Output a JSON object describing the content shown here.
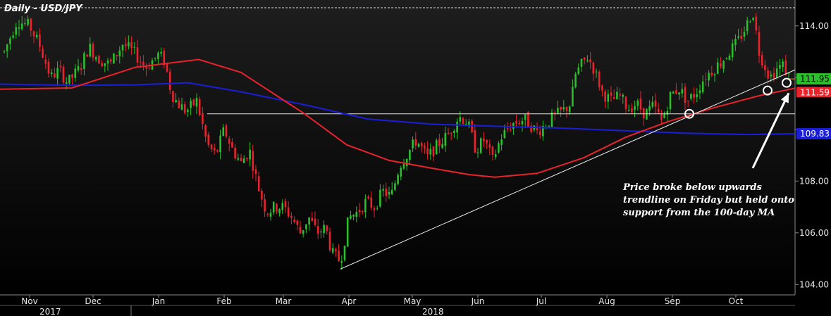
{
  "chart_data": {
    "type": "candlestick",
    "title": "Daily - USD/JPY",
    "y_ticks": [
      104,
      106,
      108,
      110,
      112,
      114
    ],
    "y_tick_labels": [
      "104.00",
      "106.00",
      "108.00",
      "",
      "",
      "114.00"
    ],
    "ylim": [
      103.6,
      115.0
    ],
    "x_ticks": [
      {
        "label": "Nov",
        "day": 0
      },
      {
        "label": "Dec",
        "day": 30
      },
      {
        "label": "Jan",
        "day": 61
      },
      {
        "label": "Feb",
        "day": 92
      },
      {
        "label": "Mar",
        "day": 120
      },
      {
        "label": "Apr",
        "day": 151
      },
      {
        "label": "May",
        "day": 181
      },
      {
        "label": "Jun",
        "day": 212
      },
      {
        "label": "Jul",
        "day": 242
      },
      {
        "label": "Aug",
        "day": 273
      },
      {
        "label": "Sep",
        "day": 304
      },
      {
        "label": "Oct",
        "day": 334
      }
    ],
    "years": [
      {
        "label": "2017",
        "day": 0
      },
      {
        "label": "2018",
        "day": 181
      }
    ],
    "xlim": [
      -14,
      362
    ],
    "close_path": [
      [
        -12,
        113.0
      ],
      [
        -6,
        114.2
      ],
      [
        0,
        114.0
      ],
      [
        5,
        113.2
      ],
      [
        10,
        112.0
      ],
      [
        14,
        112.3
      ],
      [
        18,
        111.8
      ],
      [
        24,
        112.4
      ],
      [
        28,
        113.2
      ],
      [
        33,
        112.7
      ],
      [
        38,
        112.5
      ],
      [
        44,
        113.3
      ],
      [
        49,
        113.0
      ],
      [
        55,
        112.4
      ],
      [
        61,
        112.9
      ],
      [
        64,
        112.6
      ],
      [
        67,
        111.4
      ],
      [
        70,
        111.0
      ],
      [
        74,
        110.7
      ],
      [
        79,
        111.1
      ],
      [
        84,
        109.4
      ],
      [
        88,
        109.0
      ],
      [
        92,
        110.0
      ],
      [
        96,
        109.2
      ],
      [
        100,
        108.7
      ],
      [
        104,
        109.2
      ],
      [
        108,
        107.8
      ],
      [
        112,
        106.8
      ],
      [
        116,
        107.0
      ],
      [
        120,
        107.0
      ],
      [
        124,
        106.6
      ],
      [
        128,
        106.0
      ],
      [
        132,
        106.6
      ],
      [
        136,
        106.0
      ],
      [
        140,
        106.2
      ],
      [
        143,
        105.2
      ],
      [
        147,
        104.9
      ],
      [
        151,
        106.6
      ],
      [
        155,
        106.8
      ],
      [
        159,
        107.2
      ],
      [
        163,
        107.0
      ],
      [
        167,
        107.6
      ],
      [
        171,
        107.4
      ],
      [
        175,
        108.6
      ],
      [
        179,
        109.1
      ],
      [
        183,
        109.6
      ],
      [
        188,
        108.9
      ],
      [
        193,
        109.4
      ],
      [
        198,
        109.8
      ],
      [
        203,
        110.5
      ],
      [
        207,
        110.3
      ],
      [
        211,
        109.2
      ],
      [
        215,
        109.6
      ],
      [
        219,
        108.8
      ],
      [
        223,
        109.7
      ],
      [
        228,
        110.2
      ],
      [
        234,
        110.4
      ],
      [
        240,
        109.9
      ],
      [
        244,
        110.2
      ],
      [
        248,
        110.5
      ],
      [
        252,
        110.7
      ],
      [
        256,
        111.0
      ],
      [
        258,
        112.1
      ],
      [
        261,
        112.5
      ],
      [
        264,
        112.8
      ],
      [
        267,
        112.3
      ],
      [
        271,
        111.4
      ],
      [
        275,
        111.1
      ],
      [
        279,
        111.3
      ],
      [
        283,
        110.8
      ],
      [
        287,
        111.0
      ],
      [
        291,
        110.6
      ],
      [
        295,
        110.9
      ],
      [
        299,
        110.3
      ],
      [
        303,
        111.3
      ],
      [
        307,
        111.6
      ],
      [
        311,
        111.1
      ],
      [
        315,
        111.4
      ],
      [
        319,
        112.0
      ],
      [
        323,
        112.3
      ],
      [
        327,
        112.6
      ],
      [
        331,
        113.0
      ],
      [
        335,
        113.4
      ],
      [
        339,
        114.0
      ],
      [
        342,
        114.6
      ],
      [
        345,
        113.0
      ],
      [
        348,
        112.4
      ],
      [
        350,
        112.0
      ],
      [
        353,
        112.3
      ],
      [
        356,
        112.5
      ],
      [
        358,
        112.2
      ],
      [
        360,
        111.95
      ]
    ],
    "ma_100": {
      "points": [
        [
          -14,
          111.55
        ],
        [
          20,
          111.6
        ],
        [
          50,
          112.4
        ],
        [
          80,
          112.7
        ],
        [
          100,
          112.2
        ],
        [
          130,
          110.6
        ],
        [
          150,
          109.4
        ],
        [
          170,
          108.8
        ],
        [
          190,
          108.5
        ],
        [
          208,
          108.25
        ],
        [
          220,
          108.15
        ],
        [
          240,
          108.3
        ],
        [
          262,
          108.9
        ],
        [
          282,
          109.7
        ],
        [
          302,
          110.3
        ],
        [
          322,
          110.8
        ],
        [
          345,
          111.3
        ],
        [
          362,
          111.59
        ]
      ],
      "color": "#e8232b",
      "last": "111.59"
    },
    "ma_200": {
      "points": [
        [
          -14,
          111.75
        ],
        [
          20,
          111.7
        ],
        [
          50,
          111.72
        ],
        [
          75,
          111.8
        ],
        [
          100,
          111.45
        ],
        [
          130,
          110.95
        ],
        [
          160,
          110.4
        ],
        [
          190,
          110.2
        ],
        [
          220,
          110.12
        ],
        [
          250,
          110.05
        ],
        [
          280,
          109.95
        ],
        [
          310,
          109.85
        ],
        [
          340,
          109.8
        ],
        [
          362,
          109.83
        ]
      ],
      "color": "#1a1fd6",
      "last": "109.83"
    },
    "last_price": {
      "value": "111.95",
      "color": "#2bbf2b"
    },
    "trendline": {
      "from": [
        147,
        104.6
      ],
      "to": [
        362,
        112.3
      ]
    },
    "support_line": {
      "from": [
        84,
        110.6
      ],
      "to": [
        362,
        110.6
      ]
    },
    "resistance_line": {
      "from": [
        -14,
        114.7
      ],
      "to": [
        362,
        114.7
      ]
    },
    "circles": [
      [
        312,
        110.6
      ],
      [
        349,
        111.5
      ],
      [
        358,
        111.8
      ]
    ],
    "annotation": [
      "Price broke below upwards",
      "trendline on Friday but held onto",
      "support from the 100-day MA"
    ],
    "arrow": {
      "from": [
        342,
        108.5
      ],
      "to": [
        359,
        111.4
      ]
    },
    "colors": {
      "up": "#2bbf2b",
      "down": "#e8232b",
      "background_top": "#1b1b1b",
      "background_bottom": "#000000"
    }
  }
}
